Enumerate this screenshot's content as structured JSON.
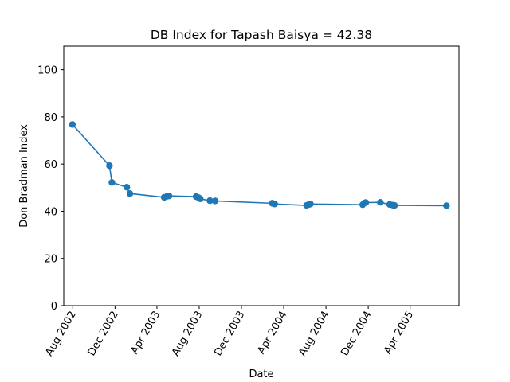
{
  "chart_data": {
    "type": "line",
    "title": "DB Index for Tapash Baisya = 42.38",
    "xlabel": "Date",
    "ylabel": "Don Bradman Index",
    "ylim": [
      0,
      110
    ],
    "xlim": [
      "2002-07-06",
      "2005-08-20"
    ],
    "yticks": [
      0,
      20,
      40,
      60,
      80,
      100
    ],
    "xticks": [
      {
        "date": "2002-08-01",
        "label": "Aug 2002"
      },
      {
        "date": "2002-12-01",
        "label": "Dec 2002"
      },
      {
        "date": "2003-04-01",
        "label": "Apr 2003"
      },
      {
        "date": "2003-08-01",
        "label": "Aug 2003"
      },
      {
        "date": "2003-12-01",
        "label": "Dec 2003"
      },
      {
        "date": "2004-04-01",
        "label": "Apr 2004"
      },
      {
        "date": "2004-08-01",
        "label": "Aug 2004"
      },
      {
        "date": "2004-12-01",
        "label": "Dec 2004"
      },
      {
        "date": "2005-04-01",
        "label": "Apr 2005"
      }
    ],
    "grid": false,
    "legend": "none",
    "series": [
      {
        "color": "#1f77b4",
        "points": [
          {
            "x": "2002-07-31",
            "y": 76.8
          },
          {
            "x": "2002-11-15",
            "y": 59.3
          },
          {
            "x": "2002-11-22",
            "y": 52.2
          },
          {
            "x": "2003-01-04",
            "y": 50.2
          },
          {
            "x": "2003-01-13",
            "y": 47.5
          },
          {
            "x": "2003-04-22",
            "y": 45.9
          },
          {
            "x": "2003-05-01",
            "y": 46.4
          },
          {
            "x": "2003-05-06",
            "y": 46.5
          },
          {
            "x": "2003-07-23",
            "y": 46.2
          },
          {
            "x": "2003-07-30",
            "y": 45.8
          },
          {
            "x": "2003-08-04",
            "y": 45.3
          },
          {
            "x": "2003-09-01",
            "y": 44.5
          },
          {
            "x": "2003-09-16",
            "y": 44.4
          },
          {
            "x": "2004-02-28",
            "y": 43.4
          },
          {
            "x": "2004-03-06",
            "y": 43.1
          },
          {
            "x": "2004-06-06",
            "y": 42.5
          },
          {
            "x": "2004-06-13",
            "y": 42.9
          },
          {
            "x": "2004-06-17",
            "y": 43.1
          },
          {
            "x": "2004-11-15",
            "y": 42.8
          },
          {
            "x": "2004-11-20",
            "y": 43.5
          },
          {
            "x": "2004-11-24",
            "y": 43.7
          },
          {
            "x": "2005-01-05",
            "y": 43.8
          },
          {
            "x": "2005-02-01",
            "y": 42.9
          },
          {
            "x": "2005-02-10",
            "y": 42.6
          },
          {
            "x": "2005-02-15",
            "y": 42.5
          },
          {
            "x": "2005-07-15",
            "y": 42.38
          }
        ]
      }
    ]
  }
}
